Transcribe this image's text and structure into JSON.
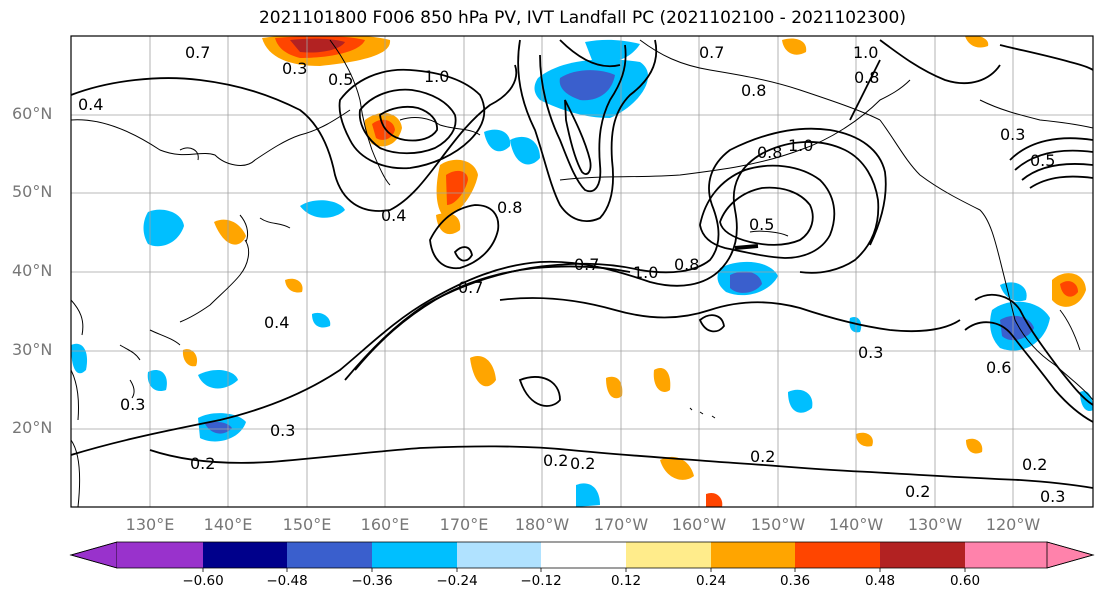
{
  "title": "2021101800 F006 850 hPa PV, IVT Landfall PC (2021102100 - 2021102300)",
  "lat_labels": [
    "60°N",
    "50°N",
    "40°N",
    "30°N",
    "20°N"
  ],
  "lon_labels": [
    "130°E",
    "140°E",
    "150°E",
    "160°E",
    "170°E",
    "180°W",
    "170°W",
    "160°W",
    "150°W",
    "140°W",
    "130°W",
    "120°W"
  ],
  "contour_labels": {
    "a": "0.7",
    "b": "0.3",
    "c": "0.5",
    "d": "1.0",
    "e": "0.7",
    "f": "0.8",
    "g": "1.0",
    "h": "0.8",
    "i": "1.0",
    "j": "0.4",
    "k": "0.4",
    "l": "0.8",
    "m": "0.5",
    "n": "0.7",
    "o": "1.0",
    "p": "0.8",
    "q": "0.7",
    "r": "0.4",
    "s": "0.3",
    "t": "0.3",
    "u": "0.2",
    "v": "0.2",
    "w": "0.2",
    "x": "0.3",
    "y": "0.2",
    "z": "0.2",
    "aa": "0.3",
    "ab": "0.2",
    "ac": "0.6",
    "ad": "0.3",
    "ae": "0.5",
    "af": "0.8"
  },
  "colorbar": {
    "ticks": [
      "−0.60",
      "−0.48",
      "−0.36",
      "−0.24",
      "−0.12",
      "0.12",
      "0.24",
      "0.36",
      "0.48",
      "0.60"
    ],
    "colors": [
      "#9932cc",
      "#00008b",
      "#3a5fcd",
      "#00bfff",
      "#b0e2ff",
      "#ffffff",
      "#ffec8b",
      "#ffa500",
      "#ff4500",
      "#b22222",
      "#ff82ab"
    ]
  }
}
